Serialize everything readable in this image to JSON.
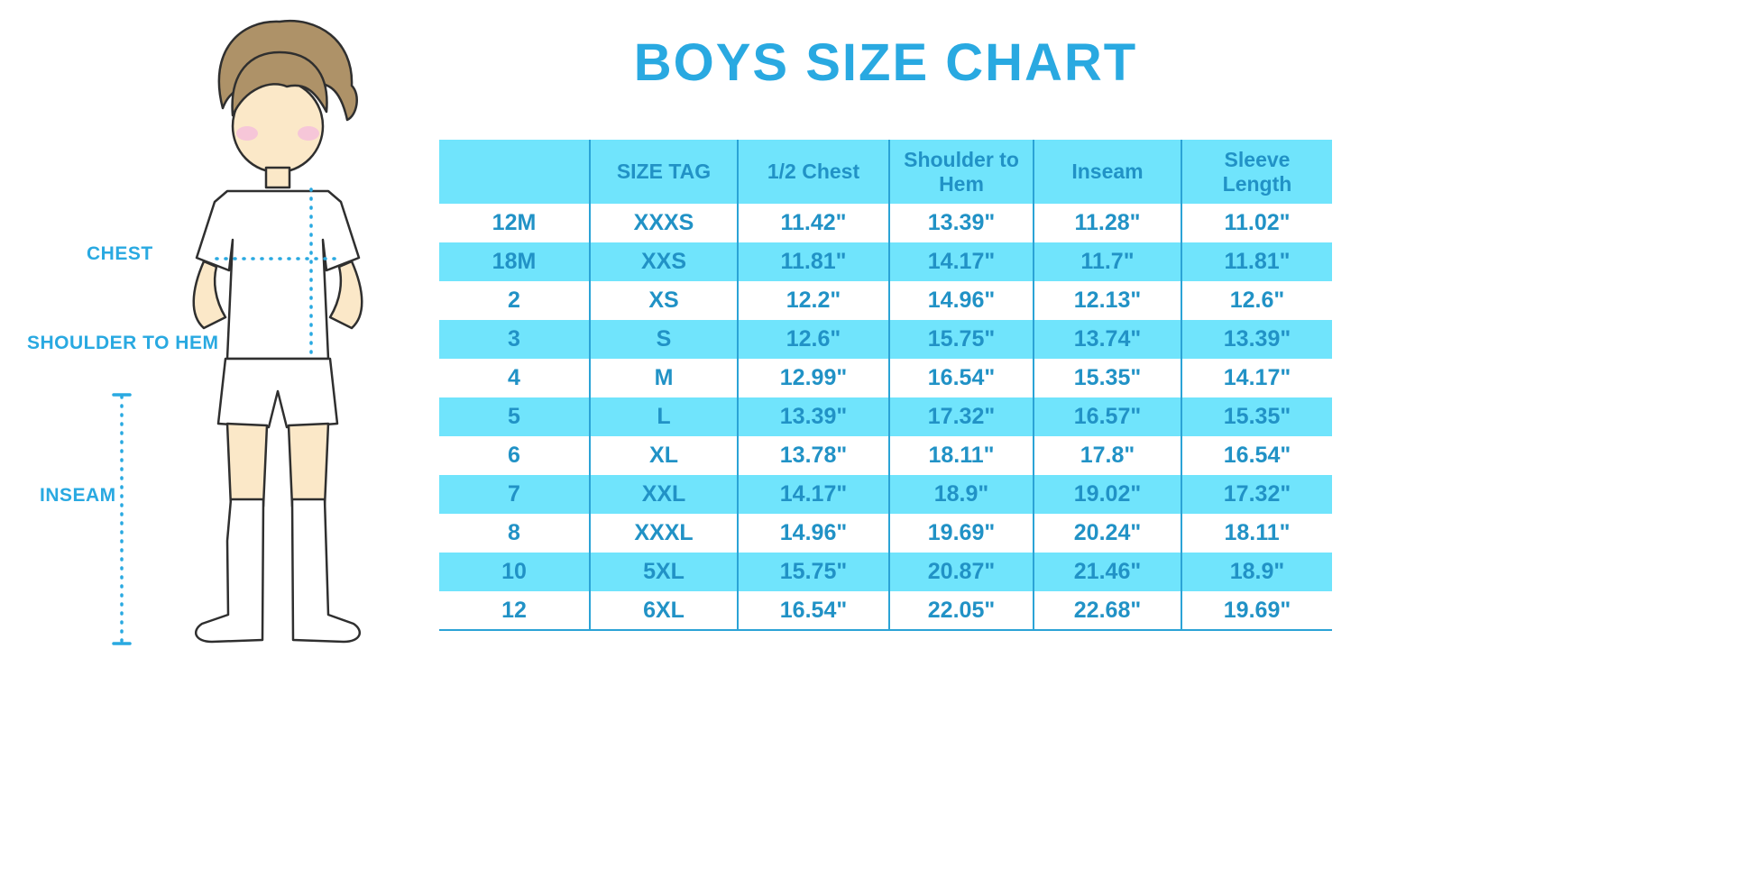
{
  "title": "BOYS SIZE CHART",
  "colors": {
    "accent_blue": "#29a9e1",
    "table_text_blue": "#2192c6",
    "row_highlight_cyan": "#70e4fc",
    "grid_line_blue": "#2ba3d6",
    "skin": "#fbe8c8",
    "hair_brown": "#ae9268",
    "blush_pink": "#f6c6d8"
  },
  "diagram": {
    "chest_label": "CHEST",
    "shoulder_label": "SHOULDER TO HEM",
    "inseam_label": "INSEAM"
  },
  "chart_data": {
    "type": "table",
    "title": "BOYS SIZE CHART",
    "columns": [
      "",
      "SIZE TAG",
      "1/2 Chest",
      "Shoulder to Hem",
      "Inseam",
      "Sleeve Length"
    ],
    "rows": [
      [
        "12M",
        "XXXS",
        "11.42\"",
        "13.39\"",
        "11.28\"",
        "11.02\""
      ],
      [
        "18M",
        "XXS",
        "11.81\"",
        "14.17\"",
        "11.7\"",
        "11.81\""
      ],
      [
        "2",
        "XS",
        "12.2\"",
        "14.96\"",
        "12.13\"",
        "12.6\""
      ],
      [
        "3",
        "S",
        "12.6\"",
        "15.75\"",
        "13.74\"",
        "13.39\""
      ],
      [
        "4",
        "M",
        "12.99\"",
        "16.54\"",
        "15.35\"",
        "14.17\""
      ],
      [
        "5",
        "L",
        "13.39\"",
        "17.32\"",
        "16.57\"",
        "15.35\""
      ],
      [
        "6",
        "XL",
        "13.78\"",
        "18.11\"",
        "17.8\"",
        "16.54\""
      ],
      [
        "7",
        "XXL",
        "14.17\"",
        "18.9\"",
        "19.02\"",
        "17.32\""
      ],
      [
        "8",
        "XXXL",
        "14.96\"",
        "19.69\"",
        "20.24\"",
        "18.11\""
      ],
      [
        "10",
        "5XL",
        "15.75\"",
        "20.87\"",
        "21.46\"",
        "18.9\""
      ],
      [
        "12",
        "6XL",
        "16.54\"",
        "22.05\"",
        "22.68\"",
        "19.69\""
      ]
    ]
  }
}
